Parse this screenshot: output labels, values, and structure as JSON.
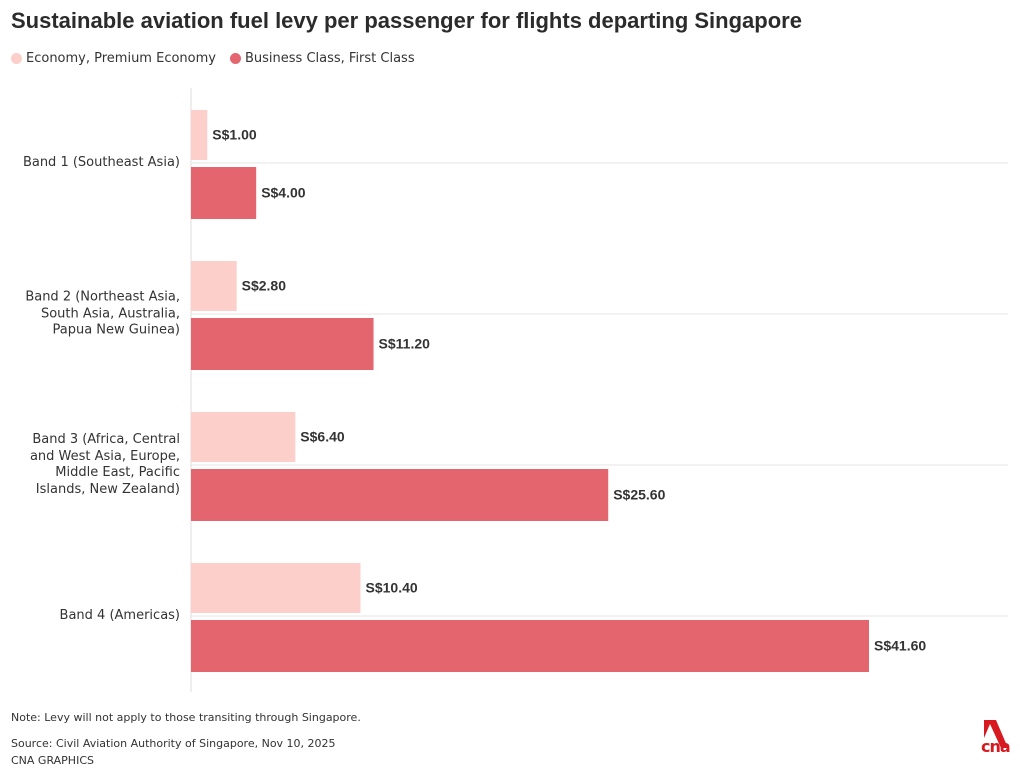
{
  "chart_data": {
    "type": "bar",
    "orientation": "horizontal",
    "title": "Sustainable aviation fuel levy per passenger for flights departing Singapore",
    "categories": [
      "Band 1 (Southeast Asia)",
      "Band 2 (Northeast Asia, South Asia, Australia, Papua New Guinea)",
      "Band 3 (Africa, Central and West Asia, Europe, Middle East, Pacific Islands, New Zealand)",
      "Band 4 (Americas)"
    ],
    "series": [
      {
        "name": "Economy, Premium Economy",
        "color": "#fccfcb",
        "values": [
          1.0,
          2.8,
          6.4,
          10.4
        ],
        "value_labels": [
          "S$1.00",
          "S$2.80",
          "S$6.40",
          "S$10.40"
        ]
      },
      {
        "name": "Business Class, First Class",
        "color": "#e5656f",
        "values": [
          4.0,
          11.2,
          25.6,
          41.6
        ],
        "value_labels": [
          "S$4.00",
          "S$11.20",
          "S$25.60",
          "S$41.60"
        ]
      }
    ],
    "note": "Note: Levy will not apply to those transiting through Singapore.",
    "source": "Source: Civil Aviation Authority of Singapore, Nov 10, 2025",
    "credit": "CNA GRAPHICS",
    "logo": "cna"
  }
}
